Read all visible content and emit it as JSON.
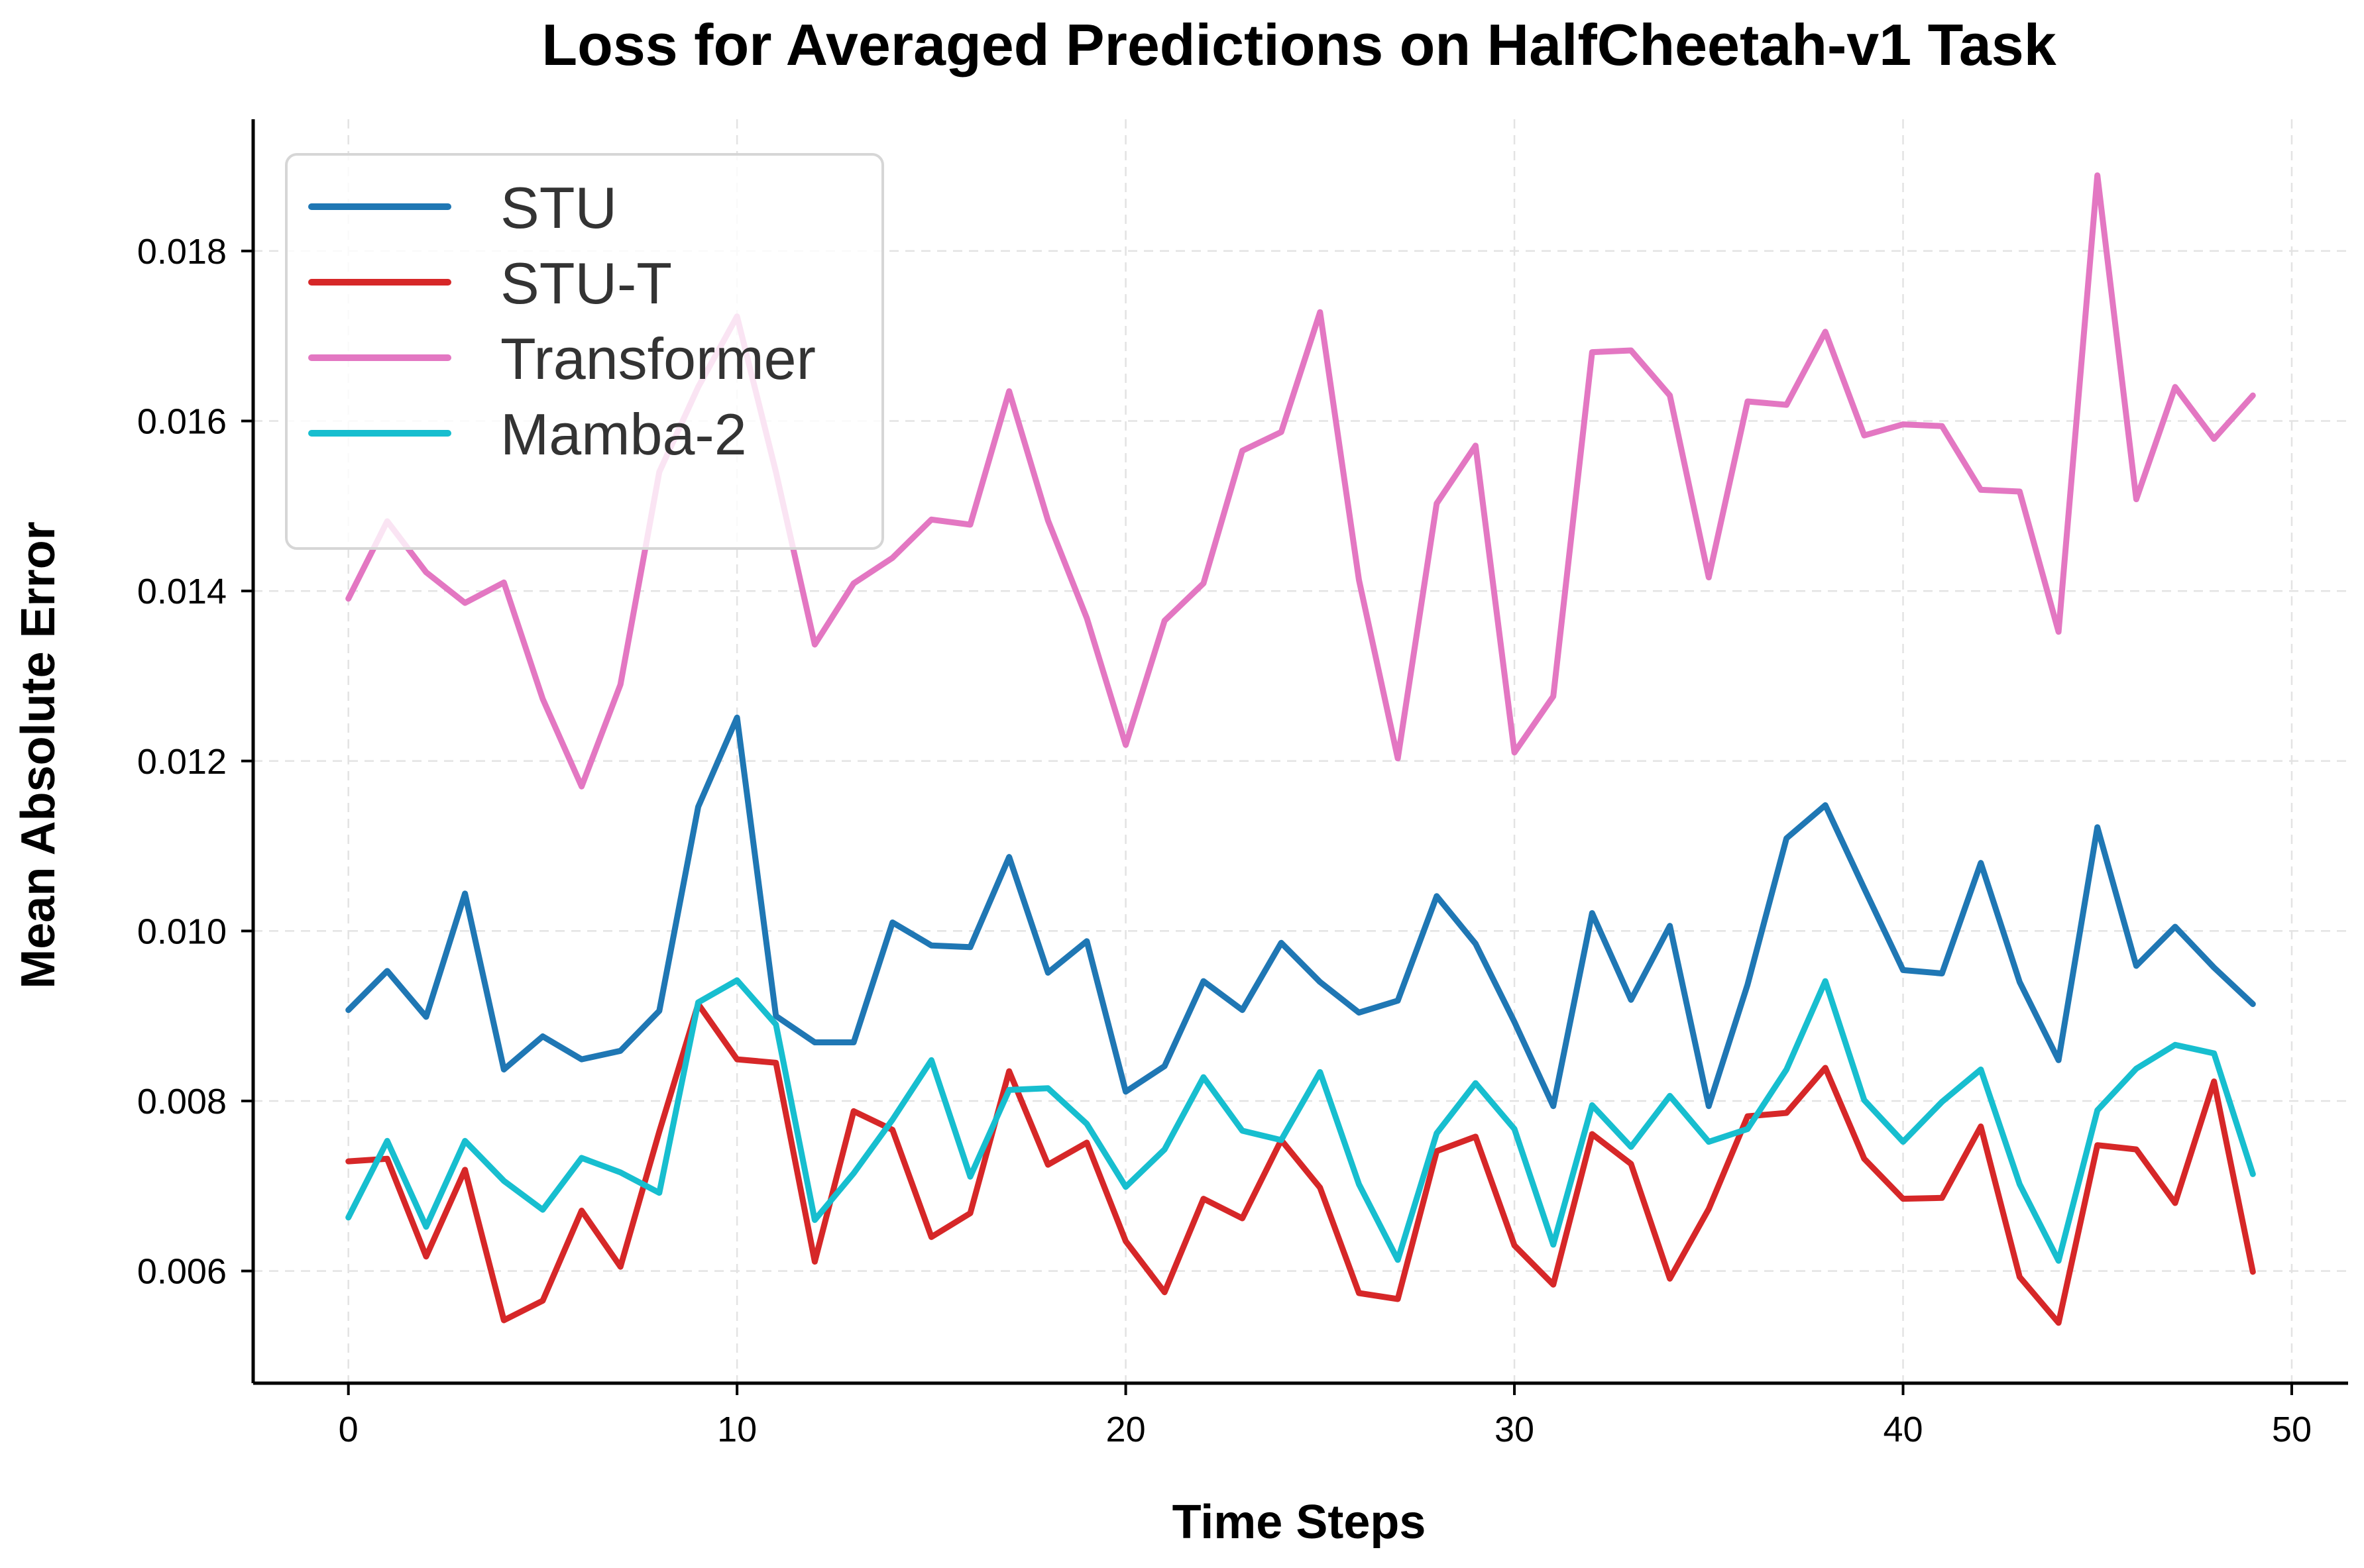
{
  "chart_data": {
    "type": "line",
    "title": "Loss for Averaged Predictions on HalfCheetah-v1 Task",
    "xlabel": "Time Steps",
    "ylabel": "Mean Absolute Error",
    "xlim": [
      -2.45,
      51.45
    ],
    "ylim": [
      0.00468,
      0.01955
    ],
    "xticks": [
      0,
      10,
      20,
      30,
      40,
      50
    ],
    "yticks": [
      0.006,
      0.008,
      0.01,
      0.012,
      0.014,
      0.016,
      0.018
    ],
    "xtick_labels": [
      "0",
      "10",
      "20",
      "30",
      "40",
      "50"
    ],
    "ytick_labels": [
      "0.006",
      "0.008",
      "0.010",
      "0.012",
      "0.014",
      "0.016",
      "0.018"
    ],
    "grid": true,
    "legend_position": "top-left",
    "x": [
      0,
      1,
      2,
      3,
      4,
      5,
      6,
      7,
      8,
      9,
      10,
      11,
      12,
      13,
      14,
      15,
      16,
      17,
      18,
      19,
      20,
      21,
      22,
      23,
      24,
      25,
      26,
      27,
      28,
      29,
      30,
      31,
      32,
      33,
      34,
      35,
      36,
      37,
      38,
      39,
      40,
      41,
      42,
      43,
      44,
      45,
      46,
      47,
      48,
      49
    ],
    "series": [
      {
        "name": "STU",
        "color": "#1f77b4",
        "values": [
          0.00907,
          0.00953,
          0.00899,
          0.01044,
          0.00837,
          0.00876,
          0.00849,
          0.00859,
          0.00906,
          0.01146,
          0.01251,
          0.009,
          0.00869,
          0.00869,
          0.0101,
          0.00983,
          0.00981,
          0.01087,
          0.00951,
          0.00988,
          0.00811,
          0.00841,
          0.00941,
          0.00907,
          0.00986,
          0.0094,
          0.00904,
          0.00918,
          0.01041,
          0.00985,
          0.00893,
          0.00794,
          0.01021,
          0.00919,
          0.01006,
          0.00794,
          0.00937,
          0.01109,
          0.01148,
          0.0105,
          0.00954,
          0.0095,
          0.0108,
          0.0094,
          0.00848,
          0.01122,
          0.00959,
          0.01005,
          0.00957,
          0.00914
        ]
      },
      {
        "name": "STU-T",
        "color": "#d62728",
        "values": [
          0.00729,
          0.00732,
          0.00617,
          0.00719,
          0.00542,
          0.00565,
          0.00671,
          0.00605,
          0.00764,
          0.00914,
          0.00849,
          0.00845,
          0.00611,
          0.00788,
          0.00766,
          0.0064,
          0.00668,
          0.00835,
          0.00725,
          0.00751,
          0.00635,
          0.00575,
          0.00685,
          0.00662,
          0.00754,
          0.00698,
          0.00574,
          0.00567,
          0.00741,
          0.00758,
          0.0063,
          0.00584,
          0.00761,
          0.00726,
          0.00591,
          0.00673,
          0.00782,
          0.00786,
          0.00839,
          0.00732,
          0.00685,
          0.00686,
          0.0077,
          0.00593,
          0.00539,
          0.00748,
          0.00743,
          0.0068,
          0.00823,
          0.00599
        ]
      },
      {
        "name": "Transformer",
        "color": "#e377c2",
        "values": [
          0.01391,
          0.01482,
          0.01422,
          0.01386,
          0.0141,
          0.01273,
          0.0117,
          0.0129,
          0.0154,
          0.0164,
          0.01723,
          0.0154,
          0.01337,
          0.01409,
          0.01439,
          0.01484,
          0.01478,
          0.01635,
          0.01483,
          0.01368,
          0.01219,
          0.01365,
          0.01409,
          0.01565,
          0.01587,
          0.01728,
          0.01413,
          0.01203,
          0.01503,
          0.01571,
          0.0121,
          0.01276,
          0.01681,
          0.01683,
          0.0163,
          0.01416,
          0.01623,
          0.01619,
          0.01705,
          0.01583,
          0.01596,
          0.01594,
          0.01519,
          0.01517,
          0.01352,
          0.01889,
          0.01508,
          0.0164,
          0.01579,
          0.0163
        ]
      },
      {
        "name": "Mamba-2",
        "color": "#17becf",
        "values": [
          0.00663,
          0.00753,
          0.00652,
          0.00753,
          0.00706,
          0.00672,
          0.00733,
          0.00716,
          0.00692,
          0.00916,
          0.00942,
          0.0089,
          0.0066,
          0.00715,
          0.00778,
          0.00848,
          0.00711,
          0.00813,
          0.00815,
          0.00773,
          0.00699,
          0.00743,
          0.00828,
          0.00765,
          0.00754,
          0.00834,
          0.00702,
          0.00613,
          0.00762,
          0.00821,
          0.00767,
          0.00631,
          0.00795,
          0.00746,
          0.00806,
          0.00752,
          0.00767,
          0.00837,
          0.00941,
          0.00801,
          0.00752,
          0.00799,
          0.00837,
          0.00702,
          0.00612,
          0.00789,
          0.00838,
          0.00866,
          0.00856,
          0.00714
        ]
      }
    ]
  }
}
